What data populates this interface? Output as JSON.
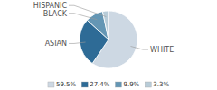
{
  "chart_data": {
    "type": "pie",
    "categories": [
      "WHITE",
      "ASIAN",
      "BLACK",
      "HISPANIC"
    ],
    "values": [
      59.5,
      27.4,
      9.9,
      3.3
    ],
    "value_labels": [
      "59.5%",
      "27.4%",
      "9.9%",
      "3.3%"
    ],
    "colors": [
      "#cdd8e3",
      "#2e6b96",
      "#6496b4",
      "#b8ccd8"
    ],
    "legend": "bottom"
  }
}
